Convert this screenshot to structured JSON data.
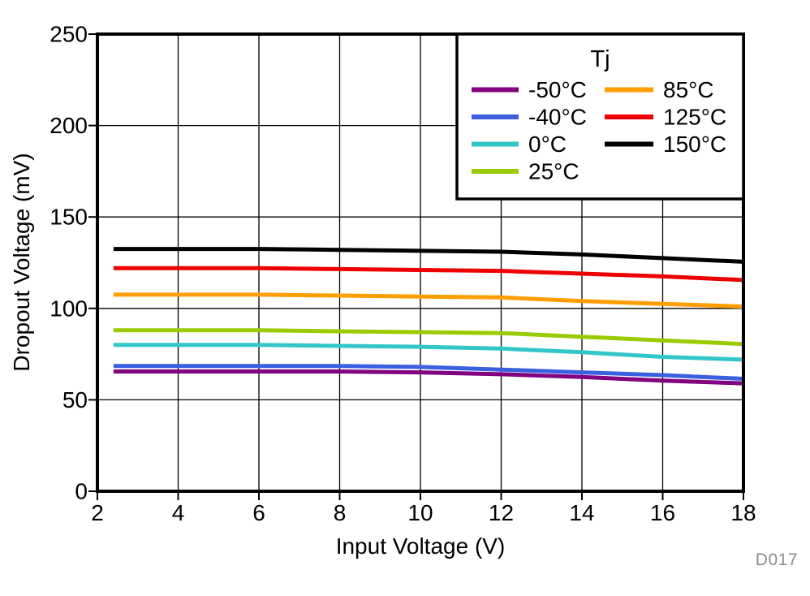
{
  "figure": {
    "watermark": "D017",
    "background": "#ffffff"
  },
  "chart_data": {
    "type": "line",
    "title": "",
    "xlabel": "Input Voltage (V)",
    "ylabel": "Dropout Voltage (mV)",
    "xlim": [
      2,
      18
    ],
    "ylim": [
      0,
      250
    ],
    "x_ticks": [
      2,
      4,
      6,
      8,
      10,
      12,
      14,
      16,
      18
    ],
    "y_ticks": [
      0,
      50,
      100,
      150,
      200,
      250
    ],
    "grid": true,
    "legend": {
      "title": "Tj",
      "position": "top-right",
      "columns": 2
    },
    "x": [
      2.4,
      4,
      6,
      8,
      10,
      12,
      14,
      16,
      18
    ],
    "series": [
      {
        "id": "minus50c",
        "name": "-50°C",
        "color": "#800080",
        "values": [
          65.5,
          65.5,
          65.5,
          65.5,
          65,
          64,
          62.5,
          60.5,
          59
        ]
      },
      {
        "id": "minus40c",
        "name": "-40°C",
        "color": "#3A5FE0",
        "values": [
          68.5,
          68.5,
          68.5,
          68.5,
          68,
          66.5,
          65,
          63.5,
          61.5
        ]
      },
      {
        "id": "0c",
        "name": "0°C",
        "color": "#33C6C6",
        "values": [
          80,
          80,
          80,
          79.5,
          79,
          78,
          76,
          73.5,
          72
        ]
      },
      {
        "id": "25c",
        "name": "25°C",
        "color": "#99CC00",
        "values": [
          88,
          88,
          88,
          87.5,
          87,
          86.5,
          84.5,
          82.5,
          80.5
        ]
      },
      {
        "id": "85c",
        "name": "85°C",
        "color": "#FF9E00",
        "values": [
          107.5,
          107.5,
          107.5,
          107,
          106.5,
          106,
          104,
          102.5,
          101
        ]
      },
      {
        "id": "125c",
        "name": "125°C",
        "color": "#EE0000",
        "values": [
          122,
          122,
          122,
          121.5,
          121,
          120.5,
          119,
          117.5,
          115.5
        ]
      },
      {
        "id": "150c",
        "name": "150°C",
        "color": "#000000",
        "values": [
          132.5,
          132.5,
          132.5,
          132,
          131.5,
          131,
          129.5,
          127.5,
          125.5
        ]
      }
    ]
  }
}
